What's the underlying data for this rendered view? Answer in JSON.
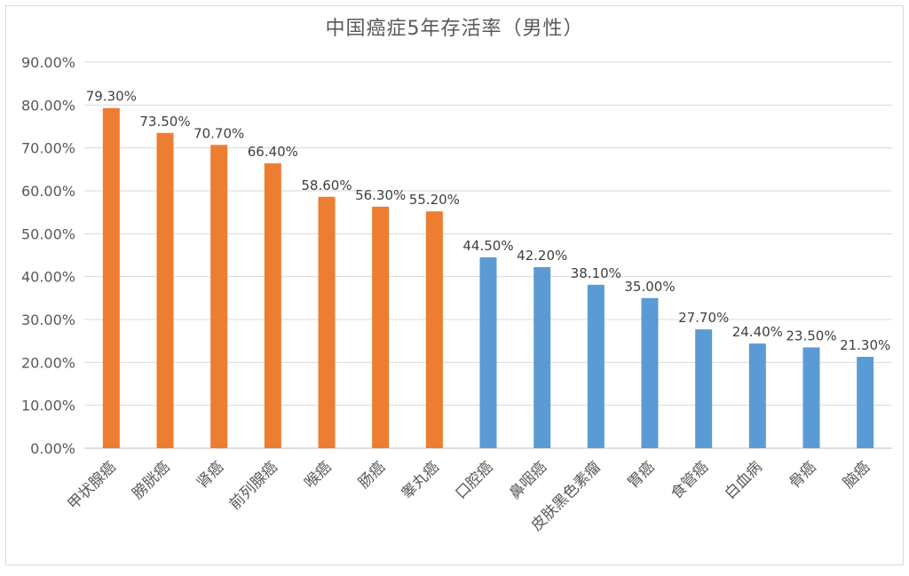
{
  "chart_data": {
    "type": "bar",
    "title": "中国癌症5年存活率（男性）",
    "xlabel": "",
    "ylabel": "",
    "ylim": [
      0,
      90
    ],
    "yticks": [
      "0.00%",
      "10.00%",
      "20.00%",
      "30.00%",
      "40.00%",
      "50.00%",
      "60.00%",
      "70.00%",
      "80.00%",
      "90.00%"
    ],
    "grid": true,
    "legend": "none",
    "categories": [
      "甲状腺癌",
      "膀胱癌",
      "肾癌",
      "前列腺癌",
      "喉癌",
      "肠癌",
      "睾丸癌",
      "口腔癌",
      "鼻咽癌",
      "皮肤黑色素瘤",
      "胃癌",
      "食管癌",
      "白血病",
      "骨癌",
      "脑癌"
    ],
    "values": [
      79.3,
      73.5,
      70.7,
      66.4,
      58.6,
      56.3,
      55.2,
      44.5,
      42.2,
      38.1,
      35.0,
      27.7,
      24.4,
      23.5,
      21.3
    ],
    "data_labels": [
      "79.30%",
      "73.50%",
      "70.70%",
      "66.40%",
      "58.60%",
      "56.30%",
      "55.20%",
      "44.50%",
      "42.20%",
      "38.10%",
      "35.00%",
      "27.70%",
      "24.40%",
      "23.50%",
      "21.30%"
    ],
    "colors": [
      "#ED7D31",
      "#ED7D31",
      "#ED7D31",
      "#ED7D31",
      "#ED7D31",
      "#ED7D31",
      "#ED7D31",
      "#5B9BD5",
      "#5B9BD5",
      "#5B9BD5",
      "#5B9BD5",
      "#5B9BD5",
      "#5B9BD5",
      "#5B9BD5",
      "#5B9BD5"
    ]
  }
}
